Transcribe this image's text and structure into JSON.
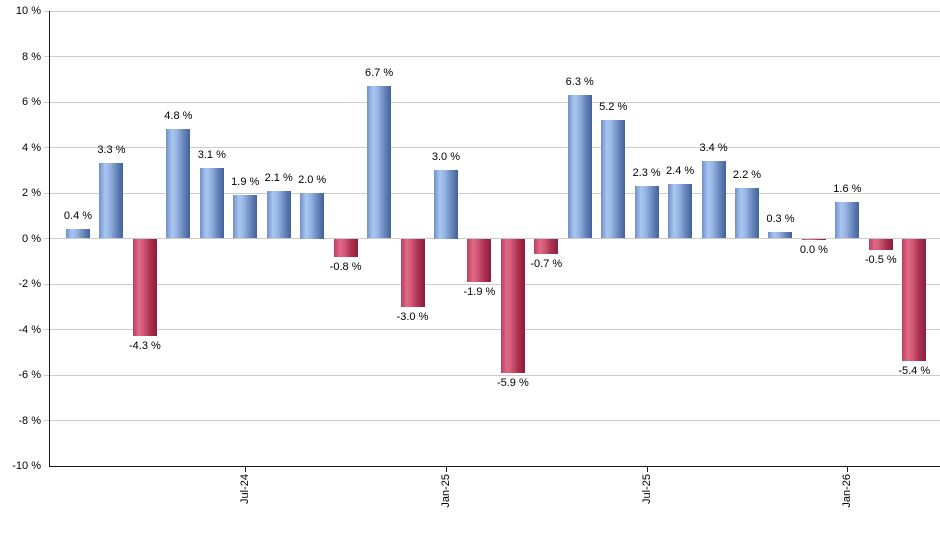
{
  "chart_data": {
    "type": "bar",
    "title": "",
    "xlabel": "",
    "ylabel": "",
    "ylim": [
      -10,
      10
    ],
    "ytick_step": 2,
    "grid": "horizontal",
    "legend": "none",
    "y_tick_labels": [
      "10 %",
      "8 %",
      "6 %",
      "4 %",
      "2 %",
      "0 %",
      "-2 %",
      "-4 %",
      "-6 %",
      "-8 %",
      "-10 %"
    ],
    "y_tick_values": [
      10,
      8,
      6,
      4,
      2,
      0,
      -2,
      -4,
      -6,
      -8,
      -10
    ],
    "x_tick_labels": [
      {
        "bar_index": 5,
        "label": "Jul-24"
      },
      {
        "bar_index": 11,
        "label": "Jan-25"
      },
      {
        "bar_index": 17,
        "label": "Jul-25"
      },
      {
        "bar_index": 23,
        "label": "Jan-26"
      }
    ],
    "bars": [
      {
        "value": 0.4,
        "label": "0.4 %",
        "color": "blue"
      },
      {
        "value": 3.3,
        "label": "3.3 %",
        "color": "blue"
      },
      {
        "value": -4.3,
        "label": "-4.3 %",
        "color": "red"
      },
      {
        "value": 4.8,
        "label": "4.8 %",
        "color": "blue"
      },
      {
        "value": 3.1,
        "label": "3.1 %",
        "color": "blue"
      },
      {
        "value": 1.9,
        "label": "1.9 %",
        "color": "blue"
      },
      {
        "value": 2.1,
        "label": "2.1 %",
        "color": "blue"
      },
      {
        "value": 2.0,
        "label": "2.0 %",
        "color": "blue"
      },
      {
        "value": -0.8,
        "label": "-0.8 %",
        "color": "red"
      },
      {
        "value": 6.7,
        "label": "6.7 %",
        "color": "blue"
      },
      {
        "value": -3.0,
        "label": "-3.0 %",
        "color": "red"
      },
      {
        "value": 3.0,
        "label": "3.0 %",
        "color": "blue"
      },
      {
        "value": -1.9,
        "label": "-1.9 %",
        "color": "red"
      },
      {
        "value": -5.9,
        "label": "-5.9 %",
        "color": "red"
      },
      {
        "value": -0.7,
        "label": "-0.7 %",
        "color": "red"
      },
      {
        "value": 6.3,
        "label": "6.3 %",
        "color": "blue"
      },
      {
        "value": 5.2,
        "label": "5.2 %",
        "color": "blue"
      },
      {
        "value": 2.3,
        "label": "2.3 %",
        "color": "blue"
      },
      {
        "value": 2.4,
        "label": "2.4 %",
        "color": "blue"
      },
      {
        "value": 3.4,
        "label": "3.4 %",
        "color": "blue"
      },
      {
        "value": 2.2,
        "label": "2.2 %",
        "color": "blue"
      },
      {
        "value": 0.3,
        "label": "0.3 %",
        "color": "blue"
      },
      {
        "value": 0.0,
        "label": "0.0 %",
        "color": "red"
      },
      {
        "value": 1.6,
        "label": "1.6 %",
        "color": "blue"
      },
      {
        "value": -0.5,
        "label": "-0.5 %",
        "color": "red"
      },
      {
        "value": -5.4,
        "label": "-5.4 %",
        "color": "red"
      }
    ]
  },
  "colors": {
    "background": "#ffffff",
    "text": "#000000",
    "axis": "#1a1a1a",
    "gridline": "#cccccc",
    "positive_bar_edge": "#7090c4",
    "positive_bar_light": "#a9c6f1",
    "positive_bar_mid": "#96b5e3",
    "positive_bar_mid2": "#6888bd",
    "positive_bar_dark": "#42619a",
    "negative_bar_edge": "#b93f60",
    "negative_bar_light": "#e16a86",
    "negative_bar_mid": "#d05676",
    "negative_bar_mid2": "#a93050",
    "negative_bar_dark": "#8c1c3a"
  }
}
